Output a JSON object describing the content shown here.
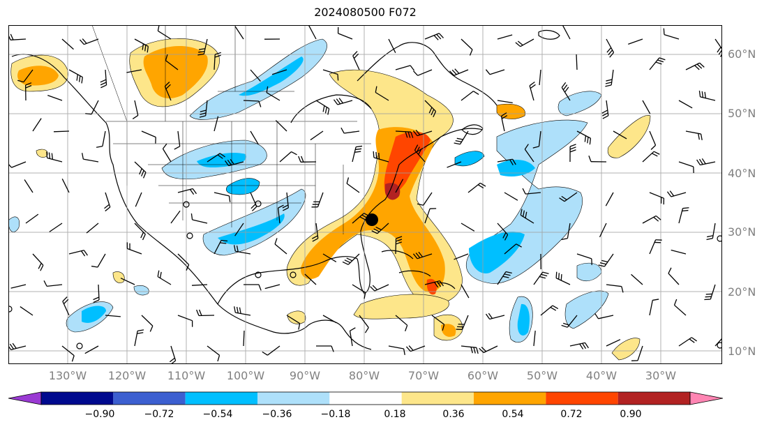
{
  "title": "2024080500 F072",
  "lat_labels": [
    "60°N",
    "50°N",
    "40°N",
    "30°N",
    "20°N",
    "10°N"
  ],
  "lon_labels": [
    "130°W",
    "120°W",
    "110°W",
    "100°W",
    "90°W",
    "80°W",
    "70°W",
    "60°W",
    "50°W",
    "40°W",
    "30°W"
  ],
  "colorbar": {
    "colors": [
      "#9a3ad3",
      "#000a8e",
      "#3c5fd0",
      "#00bfff",
      "#aee0fa",
      "#ffffff",
      "#fde68a",
      "#ffa500",
      "#ff4500",
      "#b22222",
      "#ff85b3"
    ],
    "labels": [
      "−0.90",
      "−0.72",
      "−0.54",
      "−0.36",
      "−0.18",
      "0.18",
      "0.36",
      "0.54",
      "0.72",
      "0.90"
    ]
  },
  "storm_marker": {
    "label": "storm center",
    "lat": 32.5,
    "lon": -79.0
  }
}
